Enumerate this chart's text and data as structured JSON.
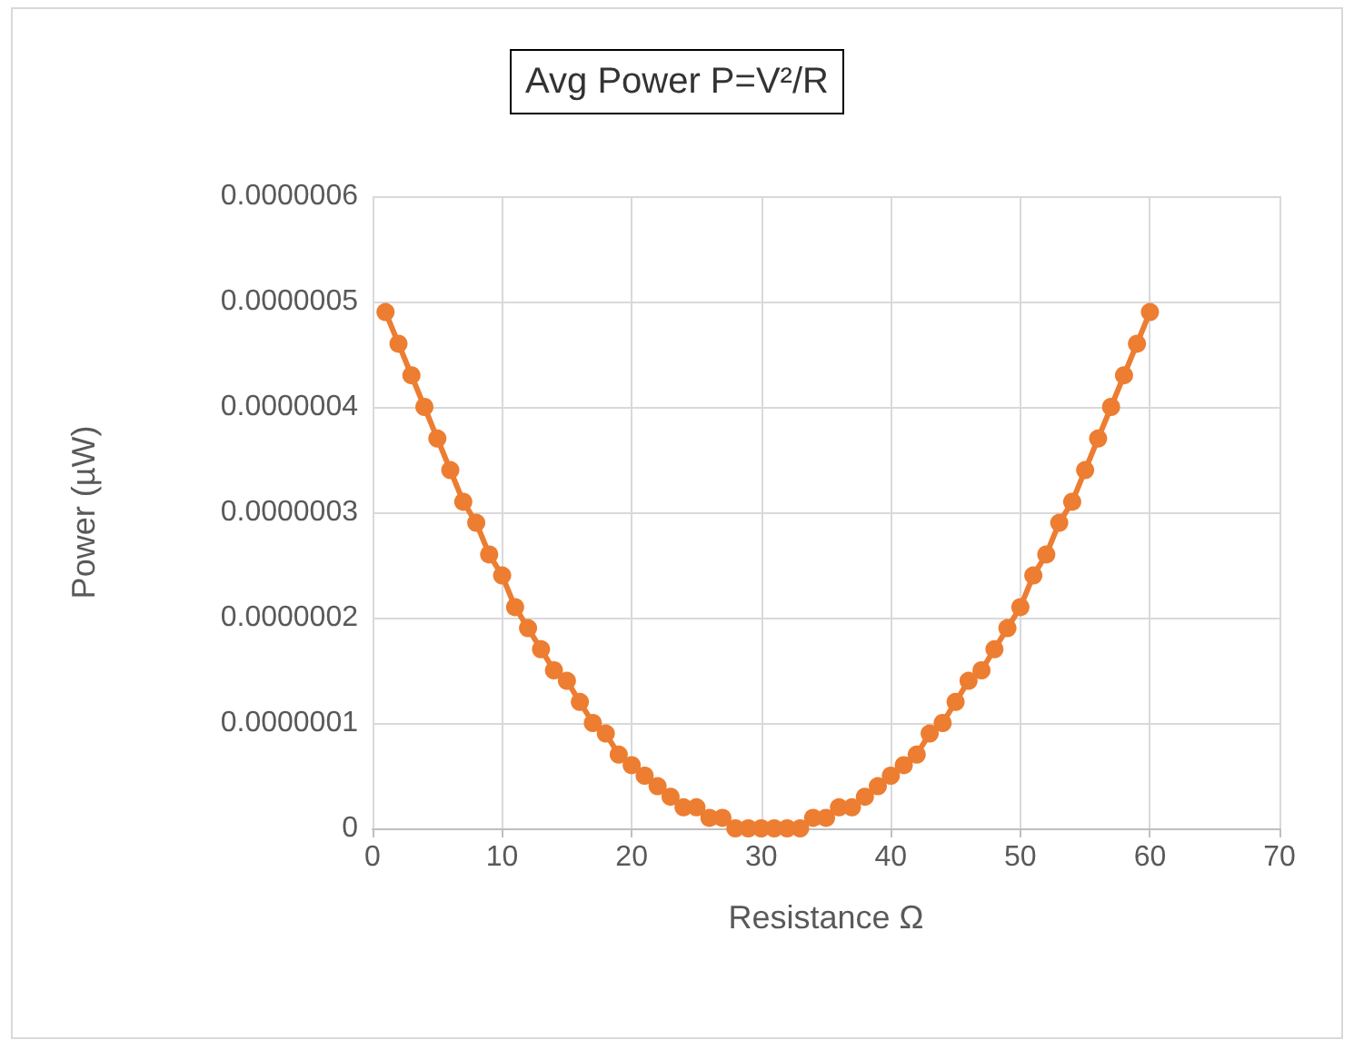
{
  "chart_data": {
    "type": "line",
    "title": "Avg Power P=V²/R",
    "xlabel": "Resistance Ω",
    "ylabel": "Power (µW)",
    "x": [
      1,
      2,
      3,
      4,
      5,
      6,
      7,
      8,
      9,
      10,
      11,
      12,
      13,
      14,
      15,
      16,
      17,
      18,
      19,
      20,
      21,
      22,
      23,
      24,
      25,
      26,
      27,
      28,
      29,
      30,
      31,
      32,
      33,
      34,
      35,
      36,
      37,
      38,
      39,
      40,
      41,
      42,
      43,
      44,
      45,
      46,
      47,
      48,
      49,
      50,
      51,
      52,
      53,
      54,
      55,
      56,
      57,
      58,
      59,
      60
    ],
    "series": [
      {
        "color": "#ed7d31",
        "values": [
          4.9e-07,
          4.6e-07,
          4.3e-07,
          4e-07,
          3.7e-07,
          3.4e-07,
          3.1e-07,
          2.9e-07,
          2.6e-07,
          2.4e-07,
          2.1e-07,
          1.9e-07,
          1.7e-07,
          1.5e-07,
          1.4e-07,
          1.2e-07,
          1e-07,
          9e-08,
          7e-08,
          6e-08,
          5e-08,
          4e-08,
          3e-08,
          2e-08,
          2e-08,
          1e-08,
          1e-08,
          0,
          0,
          0,
          0,
          0,
          0,
          1e-08,
          1e-08,
          2e-08,
          2e-08,
          3e-08,
          4e-08,
          5e-08,
          6e-08,
          7e-08,
          9e-08,
          1e-07,
          1.2e-07,
          1.4e-07,
          1.5e-07,
          1.7e-07,
          1.9e-07,
          2.1e-07,
          2.4e-07,
          2.6e-07,
          2.9e-07,
          3.1e-07,
          3.4e-07,
          3.7e-07,
          4e-07,
          4.3e-07,
          4.6e-07,
          4.9e-07
        ]
      }
    ],
    "xlim": [
      0,
      70
    ],
    "xticks": [
      0,
      10,
      20,
      30,
      40,
      50,
      60,
      70
    ],
    "ylim": [
      0,
      6e-07
    ],
    "yticks": [
      0,
      {
        "value": 1e-07,
        "label": "0.0000001"
      },
      {
        "value": 2e-07,
        "label": "0.0000002"
      },
      {
        "value": 3e-07,
        "label": "0.0000003"
      },
      {
        "value": 4e-07,
        "label": "0.0000004"
      },
      {
        "value": 5e-07,
        "label": "0.0000005"
      },
      {
        "value": 6e-07,
        "label": "0.0000006"
      }
    ],
    "grid": true,
    "marker": "circle",
    "line_style": "solid"
  }
}
